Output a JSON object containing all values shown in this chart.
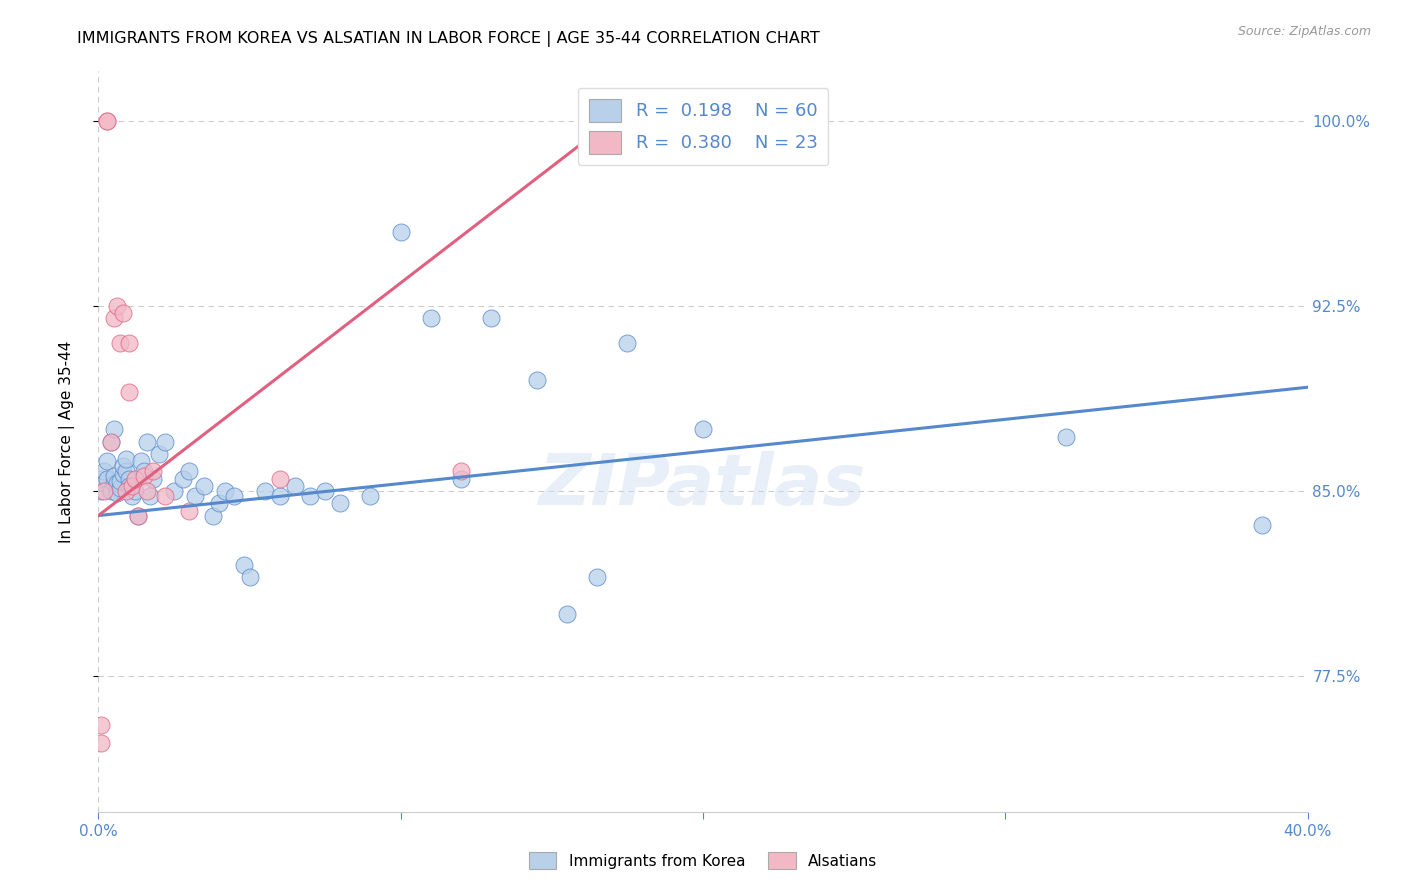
{
  "title": "IMMIGRANTS FROM KOREA VS ALSATIAN IN LABOR FORCE | AGE 35-44 CORRELATION CHART",
  "source": "Source: ZipAtlas.com",
  "ylabel": "In Labor Force | Age 35-44",
  "xlim": [
    0.0,
    0.4
  ],
  "ylim": [
    0.72,
    1.02
  ],
  "legend_R_blue": "0.198",
  "legend_N_blue": "60",
  "legend_R_pink": "0.380",
  "legend_N_pink": "23",
  "blue_color": "#b8d0ea",
  "pink_color": "#f2b8c6",
  "blue_line_color": "#5588cc",
  "pink_line_color": "#e06080",
  "grid_color": "#cccccc",
  "background_color": "#ffffff",
  "watermark": "ZIPatlas",
  "ytick_positions": [
    0.775,
    0.85,
    0.925,
    1.0
  ],
  "ytick_labels": [
    "77.5%",
    "85.0%",
    "92.5%",
    "100.0%"
  ],
  "blue_line_x": [
    0.0,
    0.4
  ],
  "blue_line_y": [
    0.84,
    0.892
  ],
  "pink_line_x": [
    0.0,
    0.175
  ],
  "pink_line_y": [
    0.84,
    1.005
  ],
  "blue_points_x": [
    0.001,
    0.001,
    0.002,
    0.002,
    0.003,
    0.003,
    0.004,
    0.004,
    0.005,
    0.005,
    0.005,
    0.006,
    0.006,
    0.007,
    0.007,
    0.008,
    0.008,
    0.009,
    0.009,
    0.01,
    0.01,
    0.011,
    0.012,
    0.013,
    0.014,
    0.015,
    0.016,
    0.017,
    0.018,
    0.02,
    0.022,
    0.025,
    0.028,
    0.03,
    0.032,
    0.035,
    0.038,
    0.04,
    0.042,
    0.045,
    0.048,
    0.05,
    0.055,
    0.06,
    0.065,
    0.07,
    0.075,
    0.08,
    0.09,
    0.1,
    0.11,
    0.12,
    0.13,
    0.145,
    0.155,
    0.165,
    0.175,
    0.2,
    0.32,
    0.385
  ],
  "blue_points_y": [
    0.85,
    0.855,
    0.853,
    0.858,
    0.855,
    0.862,
    0.85,
    0.87,
    0.853,
    0.856,
    0.875,
    0.849,
    0.853,
    0.851,
    0.854,
    0.857,
    0.86,
    0.858,
    0.863,
    0.855,
    0.852,
    0.848,
    0.85,
    0.84,
    0.862,
    0.858,
    0.87,
    0.848,
    0.855,
    0.865,
    0.87,
    0.85,
    0.855,
    0.858,
    0.848,
    0.852,
    0.84,
    0.845,
    0.85,
    0.848,
    0.82,
    0.815,
    0.85,
    0.848,
    0.852,
    0.848,
    0.85,
    0.845,
    0.848,
    0.955,
    0.92,
    0.855,
    0.92,
    0.895,
    0.8,
    0.815,
    0.91,
    0.875,
    0.872,
    0.836
  ],
  "pink_points_x": [
    0.001,
    0.001,
    0.002,
    0.003,
    0.003,
    0.004,
    0.005,
    0.006,
    0.007,
    0.008,
    0.009,
    0.01,
    0.01,
    0.011,
    0.012,
    0.013,
    0.015,
    0.016,
    0.018,
    0.022,
    0.03,
    0.06,
    0.12
  ],
  "pink_points_y": [
    0.748,
    0.755,
    0.85,
    1.0,
    1.0,
    0.87,
    0.92,
    0.925,
    0.91,
    0.922,
    0.85,
    0.91,
    0.89,
    0.852,
    0.855,
    0.84,
    0.856,
    0.85,
    0.858,
    0.848,
    0.842,
    0.855,
    0.858
  ]
}
